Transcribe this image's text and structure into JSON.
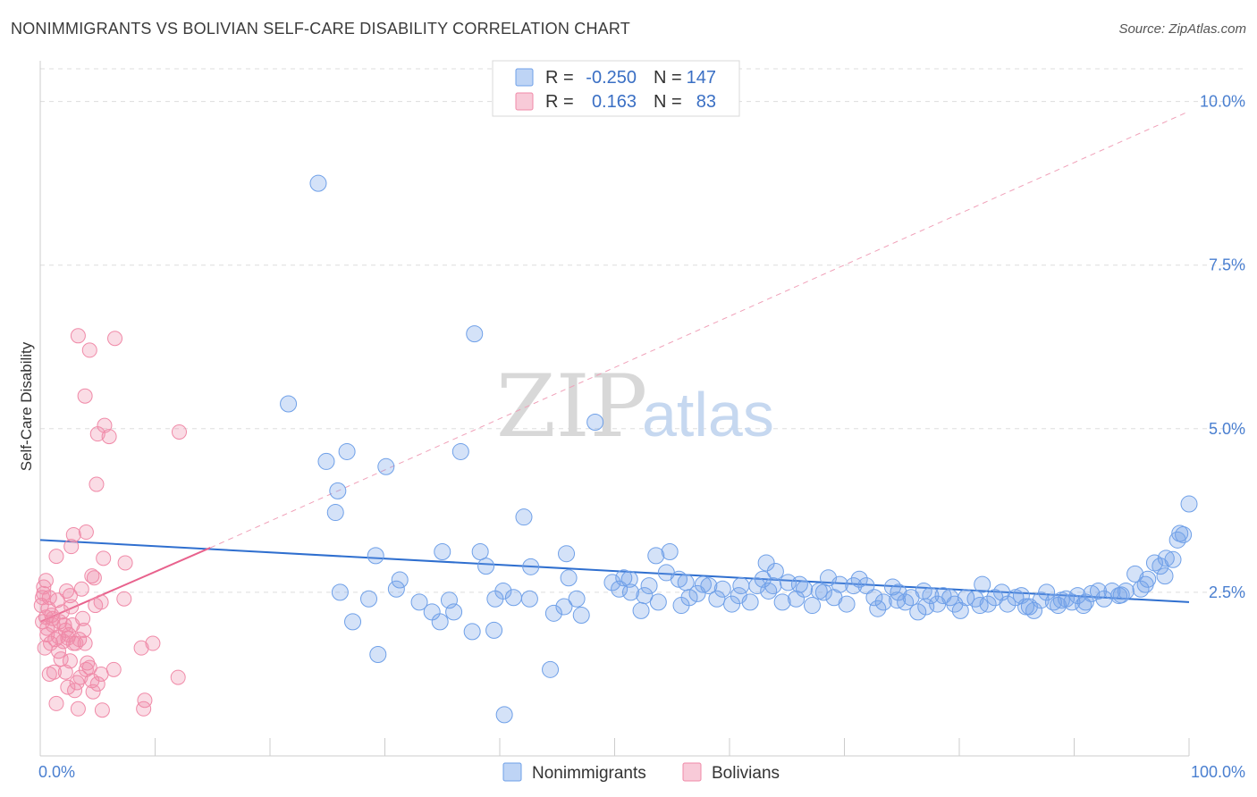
{
  "header": {
    "title": "NONIMMIGRANTS VS BOLIVIAN SELF-CARE DISABILITY CORRELATION CHART",
    "source": "Source: ZipAtlas.com"
  },
  "watermark": {
    "zip": "ZIP",
    "atlas": "atlas"
  },
  "legend": {
    "rows": [
      {
        "r_label": "R =",
        "r_value": "-0.250",
        "n_label": "N =",
        "n_value": "147",
        "color": "#6fa0e8"
      },
      {
        "r_label": "R =",
        "r_value": "0.163",
        "n_label": "N =",
        "n_value": "83",
        "color": "#f08aa8"
      }
    ]
  },
  "bottom_legend": {
    "items": [
      {
        "label": "Nonimmigrants",
        "color": "#6fa0e8"
      },
      {
        "label": "Bolivians",
        "color": "#f08aa8"
      }
    ]
  },
  "chart_data": {
    "type": "scatter",
    "title": "NONIMMIGRANTS VS BOLIVIAN SELF-CARE DISABILITY CORRELATION CHART",
    "xlabel": "",
    "ylabel": "Self-Care Disability",
    "xlim": [
      0,
      100
    ],
    "ylim": [
      0,
      10.5
    ],
    "x_tick_labels": [
      "0.0%",
      "100.0%"
    ],
    "y_ticks": [
      2.5,
      5.0,
      7.5,
      10.0
    ],
    "y_tick_labels": [
      "2.5%",
      "5.0%",
      "7.5%",
      "10.0%"
    ],
    "grid": true,
    "legend_position": "top-center",
    "series": [
      {
        "name": "Nonimmigrants",
        "color": "#6fa0e8",
        "trend": {
          "x0": 0,
          "y0": 3.3,
          "x1": 100,
          "y1": 2.35
        },
        "points": [
          [
            24.2,
            8.75
          ],
          [
            37.8,
            6.45
          ],
          [
            21.6,
            5.38
          ],
          [
            48.3,
            5.1
          ],
          [
            26.7,
            4.65
          ],
          [
            36.6,
            4.65
          ],
          [
            24.9,
            4.5
          ],
          [
            30.1,
            4.42
          ],
          [
            25.9,
            4.05
          ],
          [
            25.7,
            3.72
          ],
          [
            42.1,
            3.65
          ],
          [
            35.0,
            3.12
          ],
          [
            38.3,
            3.12
          ],
          [
            29.2,
            3.06
          ],
          [
            45.8,
            3.09
          ],
          [
            53.6,
            3.06
          ],
          [
            54.8,
            3.12
          ],
          [
            38.8,
            2.9
          ],
          [
            42.7,
            2.89
          ],
          [
            63.2,
            2.95
          ],
          [
            64.0,
            2.82
          ],
          [
            46.0,
            2.72
          ],
          [
            50.8,
            2.72
          ],
          [
            31.3,
            2.69
          ],
          [
            26.1,
            2.5
          ],
          [
            28.6,
            2.4
          ],
          [
            31.0,
            2.55
          ],
          [
            33.0,
            2.35
          ],
          [
            34.1,
            2.2
          ],
          [
            35.6,
            2.38
          ],
          [
            36.0,
            2.2
          ],
          [
            39.6,
            2.4
          ],
          [
            40.3,
            2.52
          ],
          [
            41.2,
            2.42
          ],
          [
            42.6,
            2.4
          ],
          [
            44.7,
            2.18
          ],
          [
            45.6,
            2.28
          ],
          [
            46.7,
            2.4
          ],
          [
            47.1,
            2.15
          ],
          [
            49.8,
            2.65
          ],
          [
            50.4,
            2.55
          ],
          [
            51.3,
            2.7
          ],
          [
            52.3,
            2.22
          ],
          [
            52.6,
            2.45
          ],
          [
            53.0,
            2.6
          ],
          [
            53.8,
            2.35
          ],
          [
            54.5,
            2.8
          ],
          [
            55.6,
            2.7
          ],
          [
            56.2,
            2.65
          ],
          [
            56.5,
            2.42
          ],
          [
            57.2,
            2.48
          ],
          [
            58.2,
            2.6
          ],
          [
            58.9,
            2.4
          ],
          [
            59.4,
            2.55
          ],
          [
            60.2,
            2.32
          ],
          [
            61.0,
            2.6
          ],
          [
            61.8,
            2.35
          ],
          [
            62.4,
            2.6
          ],
          [
            62.9,
            2.7
          ],
          [
            63.4,
            2.52
          ],
          [
            64.6,
            2.35
          ],
          [
            65.1,
            2.65
          ],
          [
            65.8,
            2.4
          ],
          [
            66.5,
            2.55
          ],
          [
            67.2,
            2.3
          ],
          [
            67.8,
            2.52
          ],
          [
            68.6,
            2.72
          ],
          [
            69.1,
            2.42
          ],
          [
            69.6,
            2.62
          ],
          [
            70.2,
            2.32
          ],
          [
            71.3,
            2.7
          ],
          [
            71.9,
            2.6
          ],
          [
            72.6,
            2.42
          ],
          [
            73.4,
            2.35
          ],
          [
            74.2,
            2.58
          ],
          [
            74.7,
            2.5
          ],
          [
            75.3,
            2.35
          ],
          [
            75.8,
            2.42
          ],
          [
            76.4,
            2.2
          ],
          [
            76.9,
            2.52
          ],
          [
            77.5,
            2.45
          ],
          [
            78.1,
            2.32
          ],
          [
            78.6,
            2.45
          ],
          [
            79.2,
            2.42
          ],
          [
            80.1,
            2.22
          ],
          [
            80.6,
            2.42
          ],
          [
            81.4,
            2.4
          ],
          [
            81.8,
            2.3
          ],
          [
            82.5,
            2.32
          ],
          [
            83.1,
            2.42
          ],
          [
            83.7,
            2.5
          ],
          [
            84.2,
            2.32
          ],
          [
            84.9,
            2.42
          ],
          [
            85.4,
            2.45
          ],
          [
            86.1,
            2.28
          ],
          [
            86.5,
            2.22
          ],
          [
            87.1,
            2.38
          ],
          [
            87.6,
            2.5
          ],
          [
            88.2,
            2.35
          ],
          [
            88.6,
            2.3
          ],
          [
            89.3,
            2.4
          ],
          [
            89.8,
            2.35
          ],
          [
            90.3,
            2.45
          ],
          [
            90.8,
            2.3
          ],
          [
            91.5,
            2.48
          ],
          [
            92.1,
            2.52
          ],
          [
            92.6,
            2.4
          ],
          [
            93.3,
            2.52
          ],
          [
            93.9,
            2.45
          ],
          [
            94.5,
            2.52
          ],
          [
            95.3,
            2.78
          ],
          [
            95.8,
            2.55
          ],
          [
            96.4,
            2.7
          ],
          [
            97.0,
            2.95
          ],
          [
            97.5,
            2.9
          ],
          [
            98.0,
            3.02
          ],
          [
            98.6,
            3.0
          ],
          [
            99.2,
            3.4
          ],
          [
            99.5,
            3.38
          ],
          [
            100.0,
            3.85
          ],
          [
            27.2,
            2.05
          ],
          [
            29.4,
            1.55
          ],
          [
            34.8,
            2.05
          ],
          [
            37.6,
            1.9
          ],
          [
            39.5,
            1.92
          ],
          [
            44.4,
            1.32
          ],
          [
            40.4,
            0.63
          ],
          [
            51.4,
            2.5
          ],
          [
            55.8,
            2.3
          ],
          [
            57.7,
            2.62
          ],
          [
            60.8,
            2.45
          ],
          [
            63.8,
            2.6
          ],
          [
            66.1,
            2.62
          ],
          [
            68.2,
            2.5
          ],
          [
            70.8,
            2.6
          ],
          [
            72.9,
            2.25
          ],
          [
            74.6,
            2.38
          ],
          [
            77.1,
            2.28
          ],
          [
            79.6,
            2.32
          ],
          [
            82.0,
            2.62
          ],
          [
            85.8,
            2.28
          ],
          [
            88.9,
            2.38
          ],
          [
            91.0,
            2.35
          ],
          [
            94.1,
            2.46
          ],
          [
            96.2,
            2.62
          ],
          [
            97.9,
            2.75
          ],
          [
            99.0,
            3.3
          ]
        ]
      },
      {
        "name": "Bolivians",
        "color": "#f08aa8",
        "trend": {
          "x0": 0,
          "y0": 2.05,
          "x1": 14.8,
          "y1": 3.18
        },
        "trend_extension": {
          "x0": 14.8,
          "y0": 3.18,
          "x1": 100,
          "y1": 9.85
        },
        "points": [
          [
            3.3,
            6.42
          ],
          [
            6.5,
            6.38
          ],
          [
            4.3,
            6.2
          ],
          [
            3.9,
            5.5
          ],
          [
            5.6,
            5.05
          ],
          [
            5.0,
            4.92
          ],
          [
            6.0,
            4.88
          ],
          [
            12.1,
            4.95
          ],
          [
            4.9,
            4.15
          ],
          [
            4.0,
            3.42
          ],
          [
            2.9,
            3.38
          ],
          [
            2.7,
            3.2
          ],
          [
            1.4,
            3.05
          ],
          [
            5.5,
            3.02
          ],
          [
            7.4,
            2.95
          ],
          [
            4.5,
            2.75
          ],
          [
            4.7,
            2.72
          ],
          [
            0.5,
            2.68
          ],
          [
            0.3,
            2.58
          ],
          [
            2.3,
            2.52
          ],
          [
            0.2,
            2.42
          ],
          [
            0.8,
            2.42
          ],
          [
            1.5,
            2.38
          ],
          [
            2.6,
            2.45
          ],
          [
            5.3,
            2.35
          ],
          [
            7.3,
            2.4
          ],
          [
            0.1,
            2.3
          ],
          [
            0.7,
            2.25
          ],
          [
            2.1,
            2.0
          ],
          [
            2.8,
            2.0
          ],
          [
            3.7,
            2.1
          ],
          [
            1.1,
            2.1
          ],
          [
            1.7,
            2.05
          ],
          [
            0.6,
            1.95
          ],
          [
            2.2,
            1.92
          ],
          [
            2.5,
            1.85
          ],
          [
            1.6,
            1.82
          ],
          [
            3.4,
            1.78
          ],
          [
            2.0,
            1.75
          ],
          [
            0.9,
            1.72
          ],
          [
            1.3,
            1.78
          ],
          [
            2.4,
            1.8
          ],
          [
            3.1,
            1.72
          ],
          [
            3.9,
            1.72
          ],
          [
            0.4,
            1.65
          ],
          [
            8.8,
            1.65
          ],
          [
            9.8,
            1.72
          ],
          [
            1.8,
            1.48
          ],
          [
            2.6,
            1.45
          ],
          [
            4.1,
            1.42
          ],
          [
            1.2,
            1.28
          ],
          [
            2.2,
            1.28
          ],
          [
            4.0,
            1.32
          ],
          [
            5.3,
            1.25
          ],
          [
            6.4,
            1.32
          ],
          [
            3.2,
            1.12
          ],
          [
            4.5,
            1.15
          ],
          [
            3.0,
            1.0
          ],
          [
            4.6,
            0.98
          ],
          [
            12.0,
            1.2
          ],
          [
            1.4,
            0.8
          ],
          [
            3.3,
            0.72
          ],
          [
            5.4,
            0.7
          ],
          [
            9.0,
            0.72
          ],
          [
            9.1,
            0.85
          ],
          [
            0.2,
            2.05
          ],
          [
            0.6,
            1.85
          ],
          [
            1.0,
            2.15
          ],
          [
            3.5,
            1.2
          ],
          [
            2.9,
            1.72
          ],
          [
            0.3,
            2.48
          ],
          [
            1.9,
            2.2
          ],
          [
            4.3,
            1.35
          ],
          [
            3.6,
            2.55
          ],
          [
            5.0,
            1.1
          ],
          [
            0.8,
            1.25
          ],
          [
            2.4,
            1.05
          ],
          [
            1.6,
            1.6
          ],
          [
            0.5,
            2.12
          ],
          [
            4.8,
            2.3
          ],
          [
            2.7,
            2.28
          ],
          [
            1.1,
            2.0
          ],
          [
            3.8,
            1.92
          ]
        ]
      }
    ]
  }
}
